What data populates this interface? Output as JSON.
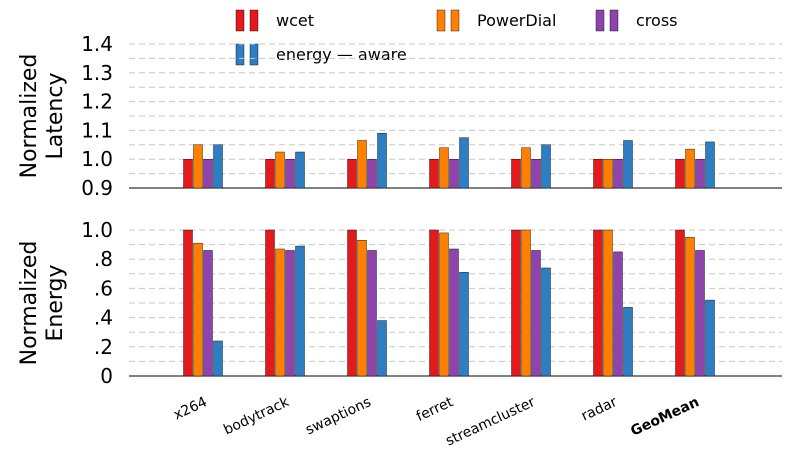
{
  "chart_data": [
    {
      "type": "bar",
      "ylabel": [
        "Normalized",
        "Latency"
      ],
      "ylim": [
        0.9,
        1.4
      ],
      "yticks": [
        "0.9",
        "1.0",
        "1.1",
        "1.2",
        "1.3",
        "1.4"
      ],
      "yticks_values": [
        0.9,
        1.0,
        1.1,
        1.2,
        1.3,
        1.4
      ],
      "categories": [
        "x264",
        "bodytrack",
        "swaptions",
        "ferret",
        "streamcluster",
        "radar",
        "GeoMean"
      ],
      "series": [
        {
          "name": "wcet",
          "values": [
            1.0,
            1.0,
            1.0,
            1.0,
            1.0,
            1.0,
            1.0
          ]
        },
        {
          "name": "PowerDial",
          "values": [
            1.05,
            1.025,
            1.065,
            1.04,
            1.04,
            1.0,
            1.035
          ]
        },
        {
          "name": "cross",
          "values": [
            1.0,
            1.0,
            1.0,
            1.0,
            1.0,
            1.0,
            1.0
          ]
        },
        {
          "name": "energy — aware",
          "values": [
            1.05,
            1.025,
            1.09,
            1.075,
            1.05,
            1.065,
            1.06
          ]
        }
      ],
      "grid": true
    },
    {
      "type": "bar",
      "ylabel": [
        "Normalized",
        "Energy"
      ],
      "ylim": [
        0.0,
        1.0
      ],
      "yticks": [
        "0",
        ".2",
        ".4",
        ".6",
        ".8",
        "1.0"
      ],
      "yticks_values": [
        0.0,
        0.2,
        0.4,
        0.6,
        0.8,
        1.0
      ],
      "categories": [
        "x264",
        "bodytrack",
        "swaptions",
        "ferret",
        "streamcluster",
        "radar",
        "GeoMean"
      ],
      "series": [
        {
          "name": "wcet",
          "values": [
            1.0,
            1.0,
            1.0,
            1.0,
            1.0,
            1.0,
            1.0
          ]
        },
        {
          "name": "PowerDial",
          "values": [
            0.91,
            0.87,
            0.93,
            0.98,
            1.0,
            1.0,
            0.95
          ]
        },
        {
          "name": "cross",
          "values": [
            0.86,
            0.86,
            0.86,
            0.87,
            0.86,
            0.85,
            0.86
          ]
        },
        {
          "name": "energy — aware",
          "values": [
            0.24,
            0.89,
            0.38,
            0.71,
            0.74,
            0.47,
            0.52
          ]
        }
      ],
      "grid": true
    }
  ],
  "legend": {
    "items": [
      {
        "label": "wcet",
        "colors": [
          "#e31a1c",
          "#e31a1c"
        ]
      },
      {
        "label": "PowerDial",
        "colors": [
          "#ff7f00",
          "#ff7f00"
        ]
      },
      {
        "label": "cross",
        "colors": [
          "#8e44ad",
          "#8e44ad"
        ]
      },
      {
        "label": "energy — aware",
        "colors": [
          "#2e7ec4",
          "#2e7ec4"
        ]
      }
    ],
    "placement": "top"
  },
  "colors": {
    "wcet": "#e31a1c",
    "PowerDial": "#ff7f00",
    "cross": "#8e44ad",
    "energy — aware": "#2e7ec4",
    "grid": "#c8c8c8"
  },
  "bold_category": "GeoMean"
}
